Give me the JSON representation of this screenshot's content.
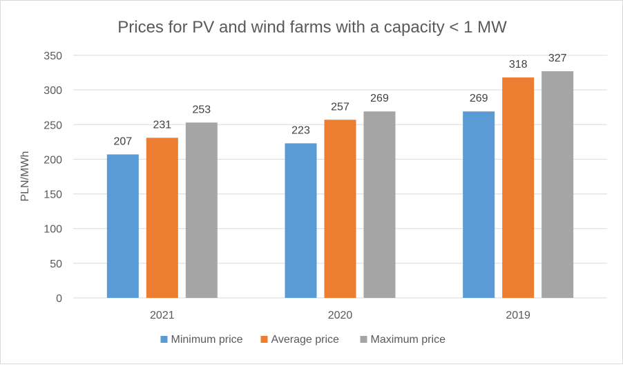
{
  "chart_data": {
    "type": "bar",
    "title": "Prices for PV and wind farms with a capacity < 1 MW",
    "xlabel": "",
    "ylabel": "PLN/MWh",
    "categories": [
      "2021",
      "2020",
      "2019"
    ],
    "series": [
      {
        "name": "Minimum price",
        "values": [
          207,
          223,
          269
        ],
        "color": "#5b9bd5"
      },
      {
        "name": "Average price",
        "values": [
          231,
          257,
          318
        ],
        "color": "#ed7d31"
      },
      {
        "name": "Maximum price",
        "values": [
          253,
          269,
          327
        ],
        "color": "#a5a5a5"
      }
    ],
    "ylim": [
      0,
      350
    ],
    "yticks": [
      0,
      50,
      100,
      150,
      200,
      250,
      300,
      350
    ],
    "grid": true,
    "legend": "bottom",
    "data_labels": true
  }
}
